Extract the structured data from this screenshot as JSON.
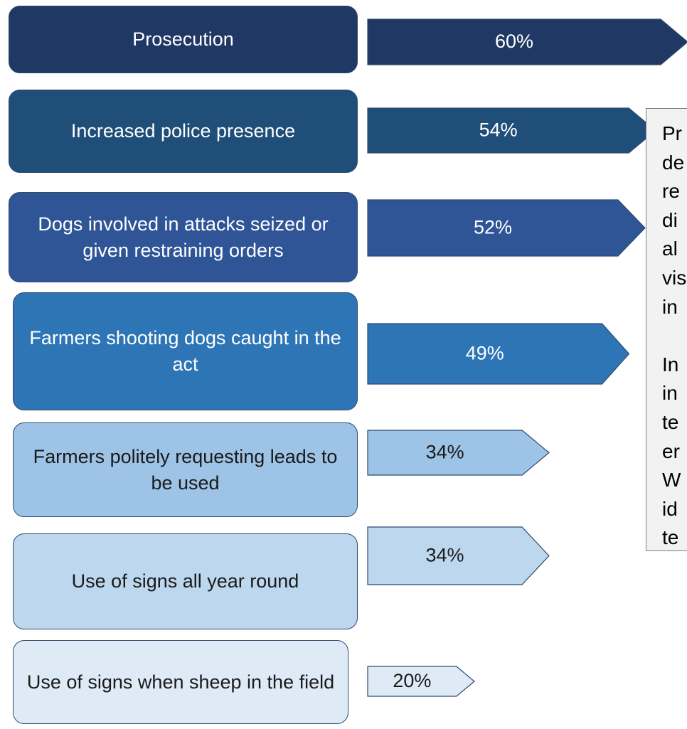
{
  "chart_data": {
    "type": "bar",
    "categories": [
      "Prosecution",
      "Increased police presence",
      "Dogs involved in attacks seized or given restraining orders",
      "Farmers shooting dogs caught in the act",
      "Farmers politely requesting leads to be used",
      "Use of signs all year round",
      "Use of signs when sheep in the field"
    ],
    "values": [
      60,
      54,
      52,
      49,
      34,
      34,
      20
    ],
    "value_labels": [
      "60%",
      "54%",
      "52%",
      "49%",
      "34%",
      "34%",
      "20%"
    ],
    "colors": [
      "#203864",
      "#1f4e79",
      "#2f5597",
      "#2e75b6",
      "#9dc3e6",
      "#bdd7ee",
      "#deebf7"
    ],
    "annotation": [
      [
        "Pr",
        "de",
        "re",
        "di",
        "al",
        "vis",
        "in"
      ],
      [
        "In",
        "in",
        "te",
        "er",
        "W",
        "id",
        "te"
      ]
    ]
  }
}
